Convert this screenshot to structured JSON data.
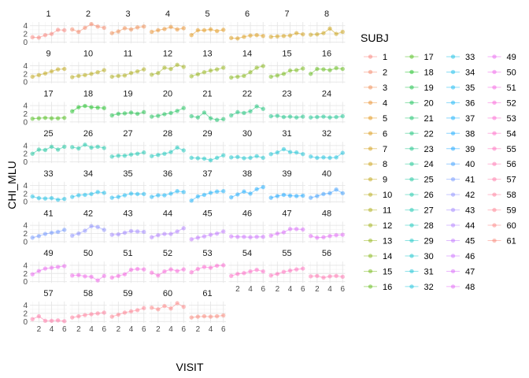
{
  "chart_data": {
    "type": "line",
    "facet_by": "SUBJ",
    "xlabel": "VISIT",
    "ylabel": "CHI_MLU",
    "x_ticks": [
      2,
      4,
      6
    ],
    "y_ticks": [
      0,
      2,
      4
    ],
    "xlim": [
      0.6,
      6.4
    ],
    "ylim": [
      -0.3,
      4.9
    ],
    "grid": true,
    "legend": {
      "title": "SUBJ",
      "position": "right",
      "columns": 4
    },
    "x": [
      1,
      2,
      3,
      4,
      5,
      6
    ],
    "series": [
      {
        "name": "1",
        "color": "#F8766D",
        "values": [
          1.2,
          1.1,
          1.7,
          2.0,
          3.0,
          2.9
        ]
      },
      {
        "name": "2",
        "color": "#F37B59",
        "values": [
          3.1,
          2.5,
          3.5,
          4.4,
          3.8,
          3.5
        ]
      },
      {
        "name": "3",
        "color": "#ED8141",
        "values": [
          2.2,
          2.6,
          3.4,
          3.1,
          3.6,
          3.8
        ]
      },
      {
        "name": "4",
        "color": "#E7861B",
        "values": [
          2.5,
          2.9,
          3.2,
          3.7,
          3.1,
          3.4
        ]
      },
      {
        "name": "5",
        "color": "#DF8B00",
        "values": [
          1.7,
          2.9,
          2.9,
          3.1,
          2.7,
          3.0
        ]
      },
      {
        "name": "6",
        "color": "#D89000",
        "values": [
          1.0,
          0.9,
          1.3,
          1.6,
          1.7,
          1.5
        ]
      },
      {
        "name": "7",
        "color": "#CF9400",
        "values": [
          1.3,
          1.4,
          1.5,
          1.6,
          2.2,
          1.9
        ]
      },
      {
        "name": "8",
        "color": "#C59900",
        "values": [
          1.8,
          1.9,
          2.2,
          3.3,
          2.0,
          2.5
        ]
      },
      {
        "name": "9",
        "color": "#BB9D00",
        "values": [
          1.3,
          1.7,
          2.1,
          2.6,
          3.1,
          3.2
        ]
      },
      {
        "name": "10",
        "color": "#B0A100",
        "values": [
          1.2,
          1.5,
          1.7,
          2.0,
          2.4,
          2.9
        ]
      },
      {
        "name": "11",
        "color": "#A4A500",
        "values": [
          1.3,
          1.5,
          1.6,
          2.2,
          2.6,
          3.1
        ]
      },
      {
        "name": "12",
        "color": "#97A900",
        "values": [
          1.8,
          2.2,
          3.5,
          3.2,
          4.2,
          3.7
        ]
      },
      {
        "name": "13",
        "color": "#89AC00",
        "values": [
          1.4,
          1.9,
          2.4,
          2.8,
          3.1,
          3.5
        ]
      },
      {
        "name": "14",
        "color": "#7AAF00",
        "values": [
          1.1,
          1.3,
          1.5,
          2.4,
          3.5,
          3.9
        ]
      },
      {
        "name": "15",
        "color": "#68B100",
        "values": [
          1.3,
          1.6,
          2.0,
          2.8,
          2.9,
          3.3
        ]
      },
      {
        "name": "16",
        "color": "#53B400",
        "values": [
          2.0,
          3.2,
          3.1,
          2.9,
          3.4,
          3.2
        ]
      },
      {
        "name": "17",
        "color": "#39B600",
        "values": [
          0.8,
          0.9,
          1.0,
          0.9,
          0.9,
          1.0
        ]
      },
      {
        "name": "18",
        "color": "#00B70C",
        "values": [
          2.6,
          3.6,
          3.9,
          3.6,
          3.5,
          3.4
        ]
      },
      {
        "name": "19",
        "color": "#00B932",
        "values": [
          1.6,
          2.0,
          2.1,
          2.3,
          2.0,
          2.4
        ]
      },
      {
        "name": "20",
        "color": "#00BA48",
        "values": [
          1.3,
          1.5,
          1.9,
          2.2,
          2.7,
          3.4
        ]
      },
      {
        "name": "21",
        "color": "#00BB5A",
        "values": [
          1.4,
          1.1,
          2.3,
          0.9,
          0.5,
          0.7
        ]
      },
      {
        "name": "22",
        "color": "#00BC6A",
        "values": [
          1.6,
          2.4,
          2.2,
          2.6,
          3.8,
          3.2
        ]
      },
      {
        "name": "23",
        "color": "#00BD79",
        "values": [
          1.4,
          1.5,
          1.2,
          1.3,
          1.1,
          1.3
        ]
      },
      {
        "name": "24",
        "color": "#00BE86",
        "values": [
          1.1,
          1.2,
          1.3,
          1.1,
          1.2,
          1.4
        ]
      },
      {
        "name": "25",
        "color": "#00BF92",
        "values": [
          2.0,
          3.0,
          2.9,
          3.7,
          3.0,
          3.7
        ]
      },
      {
        "name": "26",
        "color": "#00C09E",
        "values": [
          3.6,
          3.3,
          4.2,
          3.5,
          3.7,
          3.4
        ]
      },
      {
        "name": "27",
        "color": "#00C0A9",
        "values": [
          1.3,
          1.5,
          1.5,
          1.8,
          2.0,
          2.3
        ]
      },
      {
        "name": "28",
        "color": "#00C0B4",
        "values": [
          1.4,
          1.7,
          2.0,
          2.4,
          3.5,
          2.8
        ]
      },
      {
        "name": "29",
        "color": "#00C0BE",
        "values": [
          1.0,
          0.9,
          0.8,
          0.4,
          1.0,
          1.6
        ]
      },
      {
        "name": "30",
        "color": "#00BFC7",
        "values": [
          1.1,
          1.2,
          0.9,
          1.0,
          1.4,
          1.0
        ]
      },
      {
        "name": "31",
        "color": "#00BDD0",
        "values": [
          1.9,
          2.3,
          3.1,
          2.4,
          2.3,
          1.9
        ]
      },
      {
        "name": "32",
        "color": "#00BBD9",
        "values": [
          1.3,
          1.0,
          1.1,
          1.0,
          1.1,
          2.2
        ]
      },
      {
        "name": "33",
        "color": "#00B8E1",
        "values": [
          1.3,
          0.9,
          0.8,
          0.9,
          0.5,
          0.7
        ]
      },
      {
        "name": "34",
        "color": "#00B5E8",
        "values": [
          1.2,
          1.6,
          1.7,
          1.9,
          2.4,
          2.2
        ]
      },
      {
        "name": "35",
        "color": "#00B1EF",
        "values": [
          1.0,
          1.2,
          1.6,
          2.0,
          1.9,
          1.9
        ]
      },
      {
        "name": "36",
        "color": "#00ADF5",
        "values": [
          1.2,
          1.6,
          1.6,
          2.0,
          2.6,
          2.4
        ]
      },
      {
        "name": "37",
        "color": "#00A8FA",
        "values": [
          0.3,
          1.3,
          1.7,
          2.2,
          2.5,
          2.6
        ]
      },
      {
        "name": "38",
        "color": "#00A2FF",
        "values": [
          1.1,
          1.8,
          2.5,
          2.0,
          3.1,
          3.6
        ]
      },
      {
        "name": "39",
        "color": "#009CFF",
        "values": [
          1.0,
          1.4,
          1.7,
          1.5,
          1.4,
          1.5
        ]
      },
      {
        "name": "40",
        "color": "#2895FF",
        "values": [
          1.0,
          1.4,
          1.9,
          2.1,
          3.0,
          2.1
        ]
      },
      {
        "name": "41",
        "color": "#618CFF",
        "values": [
          1.0,
          1.4,
          1.9,
          2.2,
          2.4,
          2.9
        ]
      },
      {
        "name": "42",
        "color": "#8084FF",
        "values": [
          1.5,
          2.0,
          2.7,
          3.8,
          3.6,
          2.9
        ]
      },
      {
        "name": "43",
        "color": "#977BFF",
        "values": [
          1.7,
          1.8,
          2.2,
          2.6,
          2.5,
          2.4
        ]
      },
      {
        "name": "44",
        "color": "#AA73FF",
        "values": [
          1.1,
          1.6,
          1.9,
          1.9,
          2.5,
          3.3
        ]
      },
      {
        "name": "45",
        "color": "#BA6BFF",
        "values": [
          0.6,
          1.0,
          1.3,
          1.7,
          2.0,
          2.5
        ]
      },
      {
        "name": "46",
        "color": "#C864FE",
        "values": [
          1.3,
          1.2,
          1.2,
          1.1,
          1.2,
          1.2
        ]
      },
      {
        "name": "47",
        "color": "#D45EF9",
        "values": [
          1.5,
          2.0,
          2.3,
          3.1,
          3.1,
          3.0
        ]
      },
      {
        "name": "48",
        "color": "#DE59F4",
        "values": [
          1.4,
          1.0,
          1.1,
          1.4,
          1.6,
          1.7
        ]
      },
      {
        "name": "49",
        "color": "#E756ED",
        "values": [
          1.8,
          2.6,
          3.2,
          3.4,
          3.6,
          3.8
        ]
      },
      {
        "name": "50",
        "color": "#EE54E6",
        "values": [
          1.5,
          1.6,
          1.3,
          1.2,
          0.3,
          1.4
        ]
      },
      {
        "name": "51",
        "color": "#F453DE",
        "values": [
          1.0,
          1.4,
          1.8,
          2.9,
          3.1,
          3.0
        ]
      },
      {
        "name": "52",
        "color": "#F954D5",
        "values": [
          2.2,
          1.5,
          2.5,
          3.0,
          2.6,
          3.0
        ]
      },
      {
        "name": "53",
        "color": "#FC57CB",
        "values": [
          2.3,
          3.1,
          3.6,
          3.4,
          3.9,
          4.0
        ]
      },
      {
        "name": "54",
        "color": "#FE5BC0",
        "values": [
          1.4,
          1.9,
          2.1,
          2.5,
          2.9,
          2.5
        ]
      },
      {
        "name": "55",
        "color": "#FF60B5",
        "values": [
          1.5,
          1.9,
          2.4,
          2.7,
          3.0,
          3.2
        ]
      },
      {
        "name": "56",
        "color": "#FF65A9",
        "values": [
          1.3,
          1.4,
          1.0,
          1.3,
          1.4,
          1.2
        ]
      },
      {
        "name": "57",
        "color": "#FF6A9D",
        "values": [
          0.6,
          1.3,
          0.2,
          0.2,
          0.3,
          0.1
        ]
      },
      {
        "name": "58",
        "color": "#FF6F91",
        "values": [
          1.0,
          1.3,
          1.6,
          1.8,
          2.0,
          2.2
        ]
      },
      {
        "name": "59",
        "color": "#FF7384",
        "values": [
          1.2,
          1.7,
          2.2,
          2.5,
          2.8,
          3.3
        ]
      },
      {
        "name": "60",
        "color": "#FD7777",
        "values": [
          3.4,
          3.0,
          3.8,
          3.2,
          4.5,
          3.6
        ]
      },
      {
        "name": "61",
        "color": "#F9796A",
        "values": [
          1.0,
          1.2,
          1.3,
          1.2,
          1.3,
          1.5
        ]
      }
    ]
  }
}
